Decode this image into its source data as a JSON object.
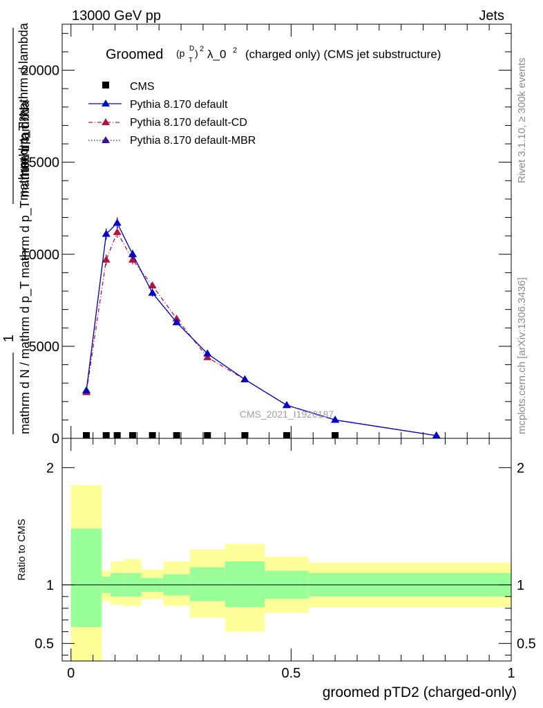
{
  "header": {
    "left": "13000 GeV pp",
    "right": "Jets"
  },
  "side_text": {
    "top": "Rivet 3.1.10, ≥ 300k events",
    "bottom": "mcplots.cern.ch [arXiv:1306.3436]"
  },
  "watermark": "CMS_2021_I1920187",
  "colors": {
    "cms": "#000000",
    "default": "#0000cc",
    "cd": "#b3143c",
    "mbr": "#3a0fa0",
    "band_outer": "#ffff99",
    "band_inner": "#99ff99"
  },
  "chart_data": [
    {
      "type": "line",
      "title_parts": {
        "main": "Groomed",
        "sym": "(p",
        "sub": "T",
        "sup_d": "D",
        "close": ")",
        "pow": "2",
        "lambda": "λ_0",
        "lam_pow": "2",
        "rest": "(charged only) (CMS jet substructure)"
      },
      "ylabel_parts": {
        "one": "1",
        "frac_top": "mathrm d²N",
        "frac_bot": "mathrm d p_T mathrm d lambda",
        "den": "mathrm d N / mathrm d p_T mathrm d p_T mathrm d lambda"
      },
      "ylabel_display": {
        "a": "mathrm d²N",
        "b": "mathrm d p_T mathrm d lambda",
        "c": "1",
        "d": "mathrm d N / mathrm d p_T mathrm d p_T mathrm d lambda"
      },
      "ylim": [
        0,
        22500
      ],
      "xlim": [
        -0.02,
        1.0
      ],
      "yticks": [
        0,
        5000,
        10000,
        15000,
        20000
      ],
      "ytick_labels": [
        "0",
        "5000",
        "10000",
        "15000",
        "20000"
      ],
      "legend": [
        {
          "name": "CMS",
          "style": "square"
        },
        {
          "name": "Pythia 8.170 default",
          "style": "solid"
        },
        {
          "name": "Pythia 8.170 default-CD",
          "style": "dashdot"
        },
        {
          "name": "Pythia 8.170 default-MBR",
          "style": "dotted"
        }
      ],
      "cms_x": [
        0.035,
        0.08,
        0.105,
        0.14,
        0.185,
        0.24,
        0.31,
        0.395,
        0.49,
        0.6
      ],
      "cms_y": [
        0,
        0,
        0,
        0,
        0,
        0,
        0,
        0,
        0,
        0
      ],
      "series": [
        {
          "name": "Pythia 8.170 default",
          "x": [
            0.035,
            0.08,
            0.105,
            0.14,
            0.185,
            0.24,
            0.31,
            0.395,
            0.49,
            0.6,
            0.83
          ],
          "y": [
            2600,
            11100,
            11700,
            10000,
            7900,
            6300,
            4600,
            3200,
            1800,
            1000,
            150
          ],
          "err": [
            150,
            300,
            300,
            250,
            200,
            150,
            120,
            100,
            80,
            60,
            30
          ]
        },
        {
          "name": "Pythia 8.170 default-CD",
          "x": [
            0.035,
            0.08,
            0.105,
            0.14,
            0.185,
            0.24,
            0.31,
            0.395,
            0.49,
            0.6,
            0.83
          ],
          "y": [
            2500,
            9700,
            11200,
            9700,
            8300,
            6500,
            4400,
            3200,
            1800,
            1000,
            150
          ],
          "err": [
            150,
            300,
            300,
            250,
            200,
            150,
            120,
            100,
            80,
            60,
            30
          ]
        },
        {
          "name": "Pythia 8.170 default-MBR",
          "x": [
            0.035,
            0.08,
            0.105,
            0.14,
            0.185,
            0.24,
            0.31,
            0.395,
            0.49,
            0.6,
            0.83
          ],
          "y": [
            2600,
            11100,
            11700,
            10000,
            7900,
            6300,
            4600,
            3200,
            1800,
            1000,
            150
          ],
          "err": [
            0,
            0,
            0,
            0,
            0,
            0,
            0,
            0,
            0,
            0,
            0
          ]
        }
      ]
    },
    {
      "type": "area",
      "ylabel": "Ratio to CMS",
      "xlabel": "groomed pTD2 (charged-only)",
      "ylim": [
        0.35,
        2.25
      ],
      "xlim": [
        -0.02,
        1.0
      ],
      "yticks": [
        0.5,
        1,
        2
      ],
      "ytick_labels": [
        "0.5",
        "1",
        "2"
      ],
      "xticks": [
        0,
        0.5,
        1
      ],
      "xtick_labels": [
        "0",
        "0.5",
        "1"
      ],
      "reference": 1,
      "bins": [
        {
          "x0": 0.0,
          "x1": 0.07,
          "outer": [
            0.35,
            1.85
          ],
          "inner": [
            0.64,
            1.48
          ]
        },
        {
          "x0": 0.07,
          "x1": 0.09,
          "outer": [
            0.86,
            1.12
          ],
          "inner": [
            0.93,
            1.07
          ]
        },
        {
          "x0": 0.09,
          "x1": 0.12,
          "outer": [
            0.83,
            1.2
          ],
          "inner": [
            0.9,
            1.1
          ]
        },
        {
          "x0": 0.12,
          "x1": 0.16,
          "outer": [
            0.82,
            1.22
          ],
          "inner": [
            0.9,
            1.1
          ]
        },
        {
          "x0": 0.16,
          "x1": 0.21,
          "outer": [
            0.88,
            1.13
          ],
          "inner": [
            0.94,
            1.06
          ]
        },
        {
          "x0": 0.21,
          "x1": 0.27,
          "outer": [
            0.82,
            1.2
          ],
          "inner": [
            0.91,
            1.09
          ]
        },
        {
          "x0": 0.27,
          "x1": 0.35,
          "outer": [
            0.72,
            1.3
          ],
          "inner": [
            0.86,
            1.15
          ]
        },
        {
          "x0": 0.35,
          "x1": 0.44,
          "outer": [
            0.6,
            1.35
          ],
          "inner": [
            0.81,
            1.2
          ]
        },
        {
          "x0": 0.44,
          "x1": 0.54,
          "outer": [
            0.76,
            1.24
          ],
          "inner": [
            0.88,
            1.12
          ]
        },
        {
          "x0": 0.54,
          "x1": 1.0,
          "outer": [
            0.81,
            1.19
          ],
          "inner": [
            0.9,
            1.1
          ]
        }
      ]
    }
  ]
}
